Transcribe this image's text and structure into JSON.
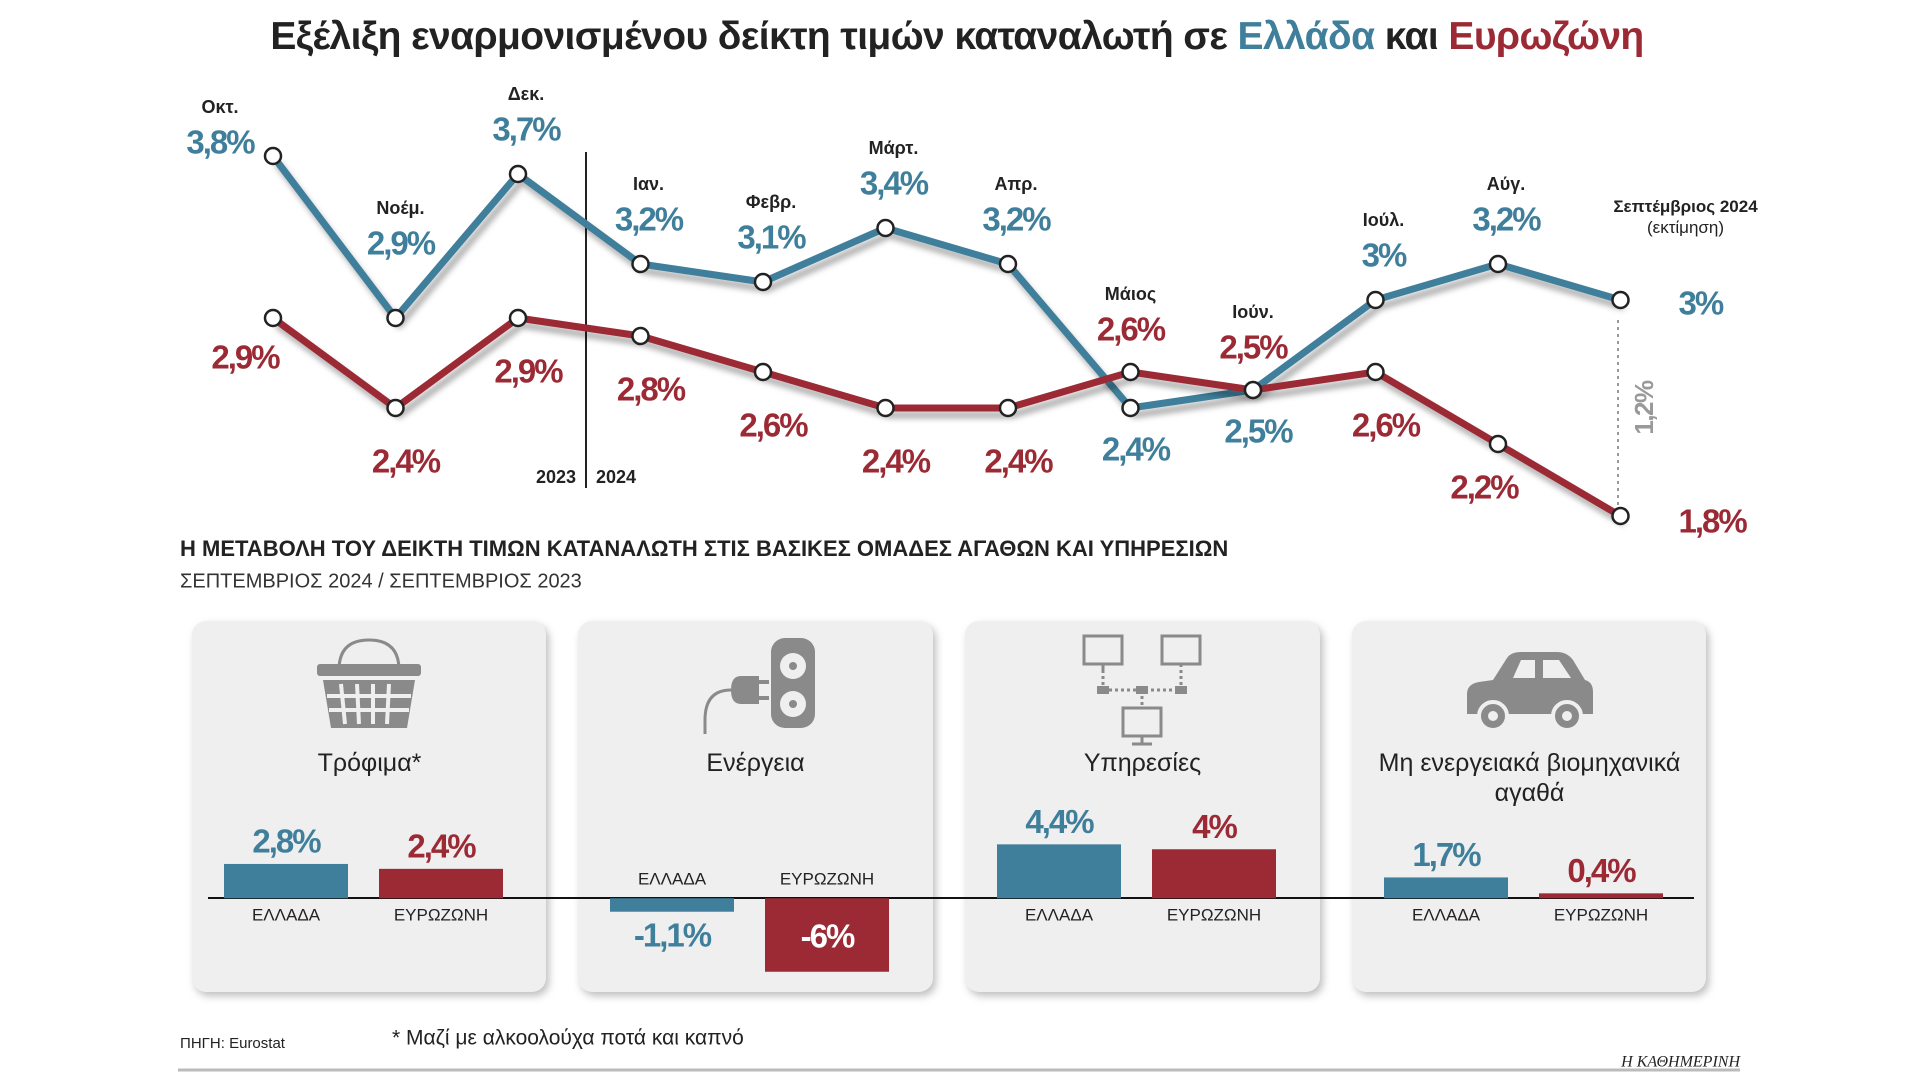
{
  "chart_data": [
    {
      "type": "line",
      "title": "Εξέλιξη εναρμονισμένου δείκτη τιμών καταναλωτή σε",
      "title_joiner": "και",
      "categories": [
        "Οκτ.",
        "Νοέμ.",
        "Δεκ.",
        "Ιαν.",
        "Φεβρ.",
        "Μάρτ.",
        "Απρ.",
        "Μάιος",
        "Ιούν.",
        "Ιούλ.",
        "Αύγ.",
        "Σεπτέμβριος 2024"
      ],
      "category_note": "(εκτίμηση)",
      "year_labels": [
        "2023",
        "2024"
      ],
      "series": [
        {
          "name": "Ελλάδα",
          "color": "#3f7f9b",
          "values": [
            3.8,
            2.9,
            3.7,
            3.2,
            3.1,
            3.4,
            3.2,
            2.4,
            2.5,
            3,
            3.2,
            3
          ],
          "value_labels": [
            "3,8%",
            "2,9%",
            "3,7%",
            "3,2%",
            "3,1%",
            "3,4%",
            "3,2%",
            "2,4%",
            "2,5%",
            "3%",
            "3,2%",
            "3%"
          ]
        },
        {
          "name": "Ευρωζώνη",
          "color": "#9b2a35",
          "values": [
            2.9,
            2.4,
            2.9,
            2.8,
            2.6,
            2.4,
            2.4,
            2.6,
            2.5,
            2.6,
            2.2,
            1.8
          ],
          "value_labels": [
            "2,9%",
            "2,4%",
            "2,9%",
            "2,8%",
            "2,6%",
            "2,4%",
            "2,4%",
            "2,6%",
            "2,5%",
            "2,6%",
            "2,2%",
            "1,8%"
          ]
        }
      ],
      "gap_label": "1,2%",
      "ylim": [
        1.6,
        4.0
      ]
    },
    {
      "type": "bar",
      "title": "Η ΜΕΤΑΒΟΛΗ ΤΟΥ ΔΕΙΚΤΗ ΤΙΜΩΝ ΚΑΤΑΝΑΛΩΤΗ ΣΤΙΣ ΒΑΣΙΚΕΣ ΟΜΑΔΕΣ ΑΓΑΘΩΝ ΚΑΙ ΥΠΗΡΕΣΙΩΝ",
      "subtitle": "ΣΕΠΤΕΜΒΡΙΟΣ 2024 / ΣΕΠΤΕΜΒΡΙΟΣ 2023",
      "categories": [
        "Τρόφιμα*",
        "Ενέργεια",
        "Υπηρεσίες",
        "Μη ενεργειακά βιομηχανικά αγαθά"
      ],
      "series": [
        {
          "name": "ΕΛΛΑΔΑ",
          "color": "#3f7f9b",
          "values": [
            2.8,
            -1.1,
            4.4,
            1.7
          ],
          "value_labels": [
            "2,8%",
            "-1,1%",
            "4,4%",
            "1,7%"
          ]
        },
        {
          "name": "ΕΥΡΩΖΩΝΗ",
          "color": "#9b2a35",
          "values": [
            2.4,
            -6,
            4,
            0.4
          ],
          "value_labels": [
            "2,4%",
            "-6%",
            "4%",
            "0,4%"
          ]
        }
      ],
      "ylim": [
        -7,
        5
      ]
    }
  ],
  "footnote": "* Μαζί με αλκοολούχα ποτά και καπνό",
  "source": "ΠΗΓΗ: Eurostat",
  "brand": "Η ΚΑΘΗΜΕΡΙΝΗ"
}
